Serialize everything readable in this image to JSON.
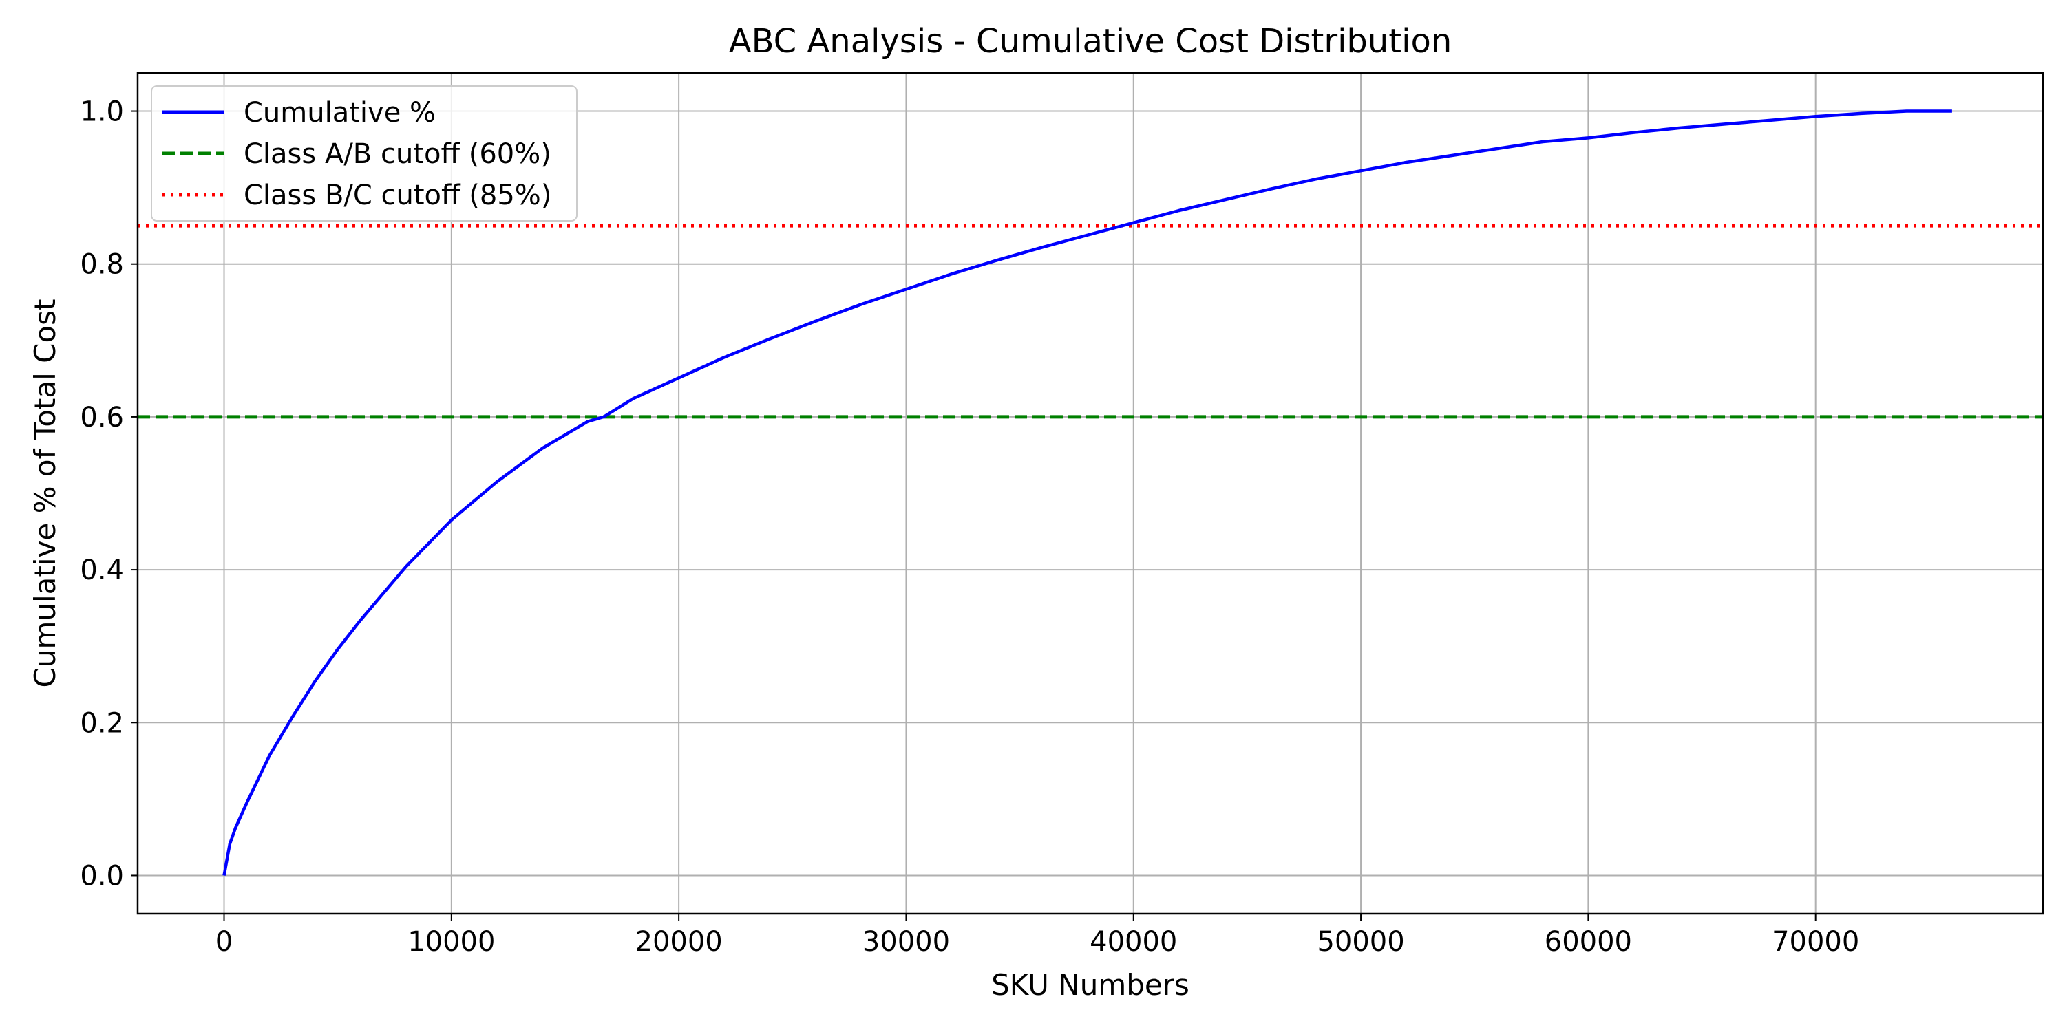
{
  "chart_data": {
    "type": "line",
    "title": "ABC Analysis - Cumulative Cost Distribution",
    "xlabel": "SKU Numbers",
    "ylabel": "Cumulative % of Total Cost",
    "xlim": [
      -3800,
      80000
    ],
    "ylim": [
      -0.05,
      1.05
    ],
    "xticks": [
      0,
      10000,
      20000,
      30000,
      40000,
      50000,
      60000,
      70000
    ],
    "xtick_labels": [
      "0",
      "10000",
      "20000",
      "30000",
      "40000",
      "50000",
      "60000",
      "70000"
    ],
    "yticks": [
      0.0,
      0.2,
      0.4,
      0.6,
      0.8,
      1.0
    ],
    "ytick_labels": [
      "0.0",
      "0.2",
      "0.4",
      "0.6",
      "0.8",
      "1.0"
    ],
    "grid": true,
    "legend_position": "top-left",
    "series": [
      {
        "name": "Cumulative %",
        "style": "solid",
        "color": "#0000ff",
        "x": [
          0,
          250,
          500,
          1000,
          2000,
          3000,
          4000,
          5000,
          6000,
          8000,
          10000,
          12000,
          14000,
          16000,
          16700,
          18000,
          20000,
          22000,
          24000,
          26000,
          28000,
          30000,
          32000,
          34000,
          36000,
          38000,
          39500,
          42000,
          44000,
          46000,
          48000,
          50000,
          52000,
          54000,
          56000,
          58000,
          60000,
          62000,
          64000,
          66000,
          68000,
          70000,
          72000,
          74000,
          76000
        ],
        "y": [
          0.0,
          0.041,
          0.062,
          0.095,
          0.157,
          0.207,
          0.254,
          0.296,
          0.334,
          0.404,
          0.465,
          0.515,
          0.559,
          0.594,
          0.6,
          0.624,
          0.651,
          0.678,
          0.702,
          0.725,
          0.747,
          0.767,
          0.787,
          0.805,
          0.822,
          0.838,
          0.85,
          0.87,
          0.884,
          0.898,
          0.911,
          0.922,
          0.933,
          0.942,
          0.951,
          0.96,
          0.965,
          0.972,
          0.978,
          0.983,
          0.988,
          0.993,
          0.997,
          1.0,
          1.0
        ]
      },
      {
        "name": "Class A/B cutoff (60%)",
        "style": "dashed",
        "color": "#008000",
        "y_value": 0.6
      },
      {
        "name": "Class B/C cutoff (85%)",
        "style": "dotted",
        "color": "#ff0000",
        "y_value": 0.85
      }
    ]
  }
}
